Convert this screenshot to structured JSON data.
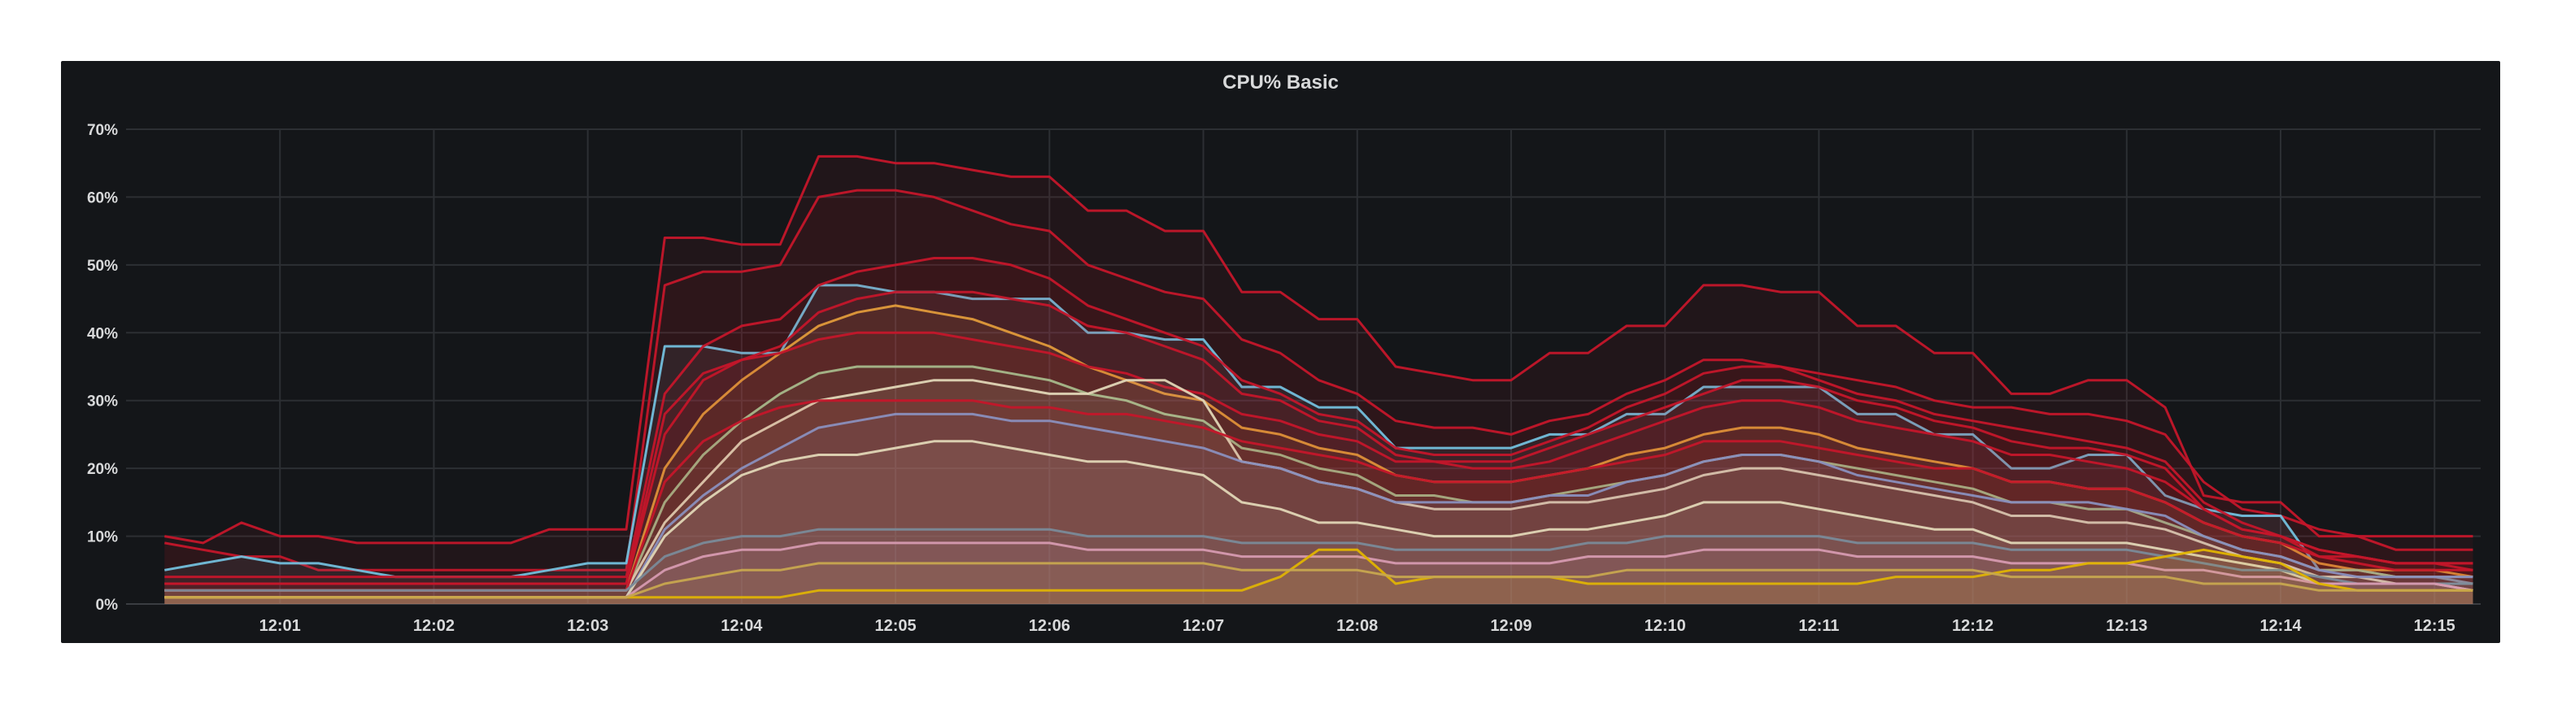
{
  "panel": {
    "title": "CPU% Basic"
  },
  "colors": {
    "background": "#141619",
    "grid": "#2c2f33",
    "text": "#d8d9da",
    "red_series": "#c4162a",
    "light_blue_series": "#73bfdc",
    "cream_series": "#e0d6b6",
    "yellow_series": "#e0b400",
    "orange_series": "#e09a3a",
    "sage_series": "#a7b88a"
  },
  "chart_data": {
    "type": "line",
    "title": "CPU% Basic",
    "xlabel": "",
    "ylabel": "",
    "x_tick_labels": [
      "12:01",
      "12:02",
      "12:03",
      "12:04",
      "12:05",
      "12:06",
      "12:07",
      "12:08",
      "12:09",
      "12:10",
      "12:11",
      "12:12",
      "12:13",
      "12:14",
      "12:15"
    ],
    "y_tick_labels": [
      "0%",
      "10%",
      "20%",
      "30%",
      "40%",
      "50%",
      "60%",
      "70%"
    ],
    "ylim": [
      0,
      70
    ],
    "grid": true,
    "legend": "none",
    "x": [
      0.25,
      0.5,
      0.75,
      1.0,
      1.25,
      1.5,
      1.75,
      2.0,
      2.25,
      2.5,
      2.75,
      3.0,
      3.25,
      3.5,
      3.75,
      4.0,
      4.25,
      4.5,
      4.75,
      5.0,
      5.25,
      5.5,
      5.75,
      6.0,
      6.25,
      6.5,
      6.75,
      7.0,
      7.25,
      7.5,
      7.75,
      8.0,
      8.25,
      8.5,
      8.75,
      9.0,
      9.25,
      9.5,
      9.75,
      10.0,
      10.25,
      10.5,
      10.75,
      11.0,
      11.25,
      11.5,
      11.75,
      12.0,
      12.25,
      12.5,
      12.75,
      13.0,
      13.25,
      13.5,
      13.75,
      14.0,
      14.25,
      14.5,
      14.75,
      15.0,
      15.25
    ],
    "series": [
      {
        "color": "#c4162a",
        "values": [
          10,
          9,
          12,
          10,
          10,
          9,
          9,
          9,
          9,
          9,
          11,
          11,
          11,
          54,
          54,
          53,
          53,
          66,
          66,
          65,
          65,
          64,
          63,
          63,
          58,
          58,
          55,
          55,
          46,
          46,
          42,
          42,
          35,
          34,
          33,
          33,
          37,
          37,
          41,
          41,
          47,
          47,
          46,
          46,
          41,
          41,
          37,
          37,
          31,
          31,
          33,
          33,
          29,
          16,
          15,
          15,
          10,
          10,
          10,
          10,
          10
        ]
      },
      {
        "color": "#c4162a",
        "values": [
          9,
          8,
          7,
          7,
          5,
          5,
          5,
          5,
          5,
          5,
          5,
          5,
          5,
          47,
          49,
          49,
          50,
          60,
          61,
          61,
          60,
          58,
          56,
          55,
          50,
          48,
          46,
          45,
          39,
          37,
          33,
          31,
          27,
          26,
          26,
          25,
          27,
          28,
          31,
          33,
          36,
          36,
          35,
          34,
          33,
          32,
          30,
          29,
          29,
          28,
          28,
          27,
          25,
          18,
          14,
          13,
          11,
          10,
          8,
          8,
          8
        ]
      },
      {
        "color": "#73bfdc",
        "values": [
          5,
          6,
          7,
          6,
          6,
          5,
          4,
          4,
          4,
          4,
          5,
          6,
          6,
          38,
          38,
          37,
          37,
          47,
          47,
          46,
          46,
          45,
          45,
          45,
          40,
          40,
          39,
          39,
          32,
          32,
          29,
          29,
          23,
          23,
          23,
          23,
          25,
          25,
          28,
          28,
          32,
          32,
          32,
          32,
          28,
          28,
          25,
          25,
          20,
          20,
          22,
          22,
          16,
          14,
          13,
          13,
          5,
          5,
          4,
          4,
          3
        ]
      },
      {
        "color": "#c4162a",
        "values": [
          4,
          4,
          4,
          4,
          4,
          4,
          4,
          4,
          4,
          4,
          4,
          4,
          4,
          31,
          38,
          41,
          42,
          47,
          49,
          50,
          51,
          51,
          50,
          48,
          44,
          42,
          40,
          38,
          33,
          31,
          28,
          27,
          23,
          22,
          22,
          22,
          24,
          26,
          29,
          31,
          34,
          35,
          35,
          33,
          31,
          30,
          28,
          27,
          26,
          25,
          24,
          23,
          21,
          15,
          12,
          10,
          8,
          7,
          6,
          6,
          6
        ]
      },
      {
        "color": "#c4162a",
        "values": [
          3,
          3,
          3,
          3,
          3,
          3,
          3,
          3,
          3,
          3,
          3,
          3,
          3,
          25,
          33,
          36,
          38,
          43,
          45,
          46,
          46,
          46,
          45,
          44,
          41,
          40,
          38,
          36,
          31,
          30,
          27,
          26,
          22,
          21,
          21,
          21,
          23,
          25,
          27,
          29,
          31,
          33,
          33,
          32,
          30,
          29,
          27,
          26,
          24,
          23,
          23,
          22,
          20,
          14,
          11,
          10,
          7,
          7,
          6,
          6,
          5
        ]
      },
      {
        "color": "#e09a3a",
        "values": [
          2,
          2,
          2,
          2,
          2,
          2,
          2,
          2,
          2,
          2,
          2,
          2,
          2,
          20,
          28,
          33,
          37,
          41,
          43,
          44,
          43,
          42,
          40,
          38,
          35,
          33,
          31,
          30,
          26,
          25,
          23,
          22,
          19,
          18,
          18,
          18,
          19,
          20,
          22,
          23,
          25,
          26,
          26,
          25,
          23,
          22,
          21,
          20,
          18,
          18,
          17,
          17,
          15,
          12,
          10,
          9,
          6,
          5,
          5,
          5,
          4
        ]
      },
      {
        "color": "#c4162a",
        "values": [
          3,
          3,
          3,
          3,
          3,
          3,
          3,
          3,
          3,
          3,
          3,
          3,
          3,
          28,
          34,
          36,
          37,
          39,
          40,
          40,
          40,
          39,
          38,
          37,
          35,
          34,
          32,
          31,
          28,
          27,
          25,
          24,
          21,
          21,
          20,
          20,
          21,
          23,
          25,
          27,
          29,
          30,
          30,
          29,
          27,
          26,
          25,
          24,
          22,
          22,
          21,
          20,
          18,
          14,
          11,
          10,
          8,
          7,
          6,
          6,
          6
        ]
      },
      {
        "color": "#a7b88a",
        "values": [
          2,
          2,
          2,
          2,
          2,
          2,
          2,
          2,
          2,
          2,
          2,
          2,
          2,
          15,
          22,
          27,
          31,
          34,
          35,
          35,
          35,
          35,
          34,
          33,
          31,
          30,
          28,
          27,
          23,
          22,
          20,
          19,
          16,
          16,
          15,
          15,
          16,
          17,
          18,
          19,
          21,
          22,
          22,
          21,
          20,
          19,
          18,
          17,
          15,
          15,
          14,
          14,
          12,
          10,
          8,
          7,
          5,
          5,
          4,
          4,
          4
        ]
      },
      {
        "color": "#e0d6b6",
        "values": [
          2,
          2,
          2,
          2,
          2,
          2,
          2,
          2,
          2,
          2,
          2,
          2,
          2,
          12,
          18,
          24,
          27,
          30,
          31,
          32,
          33,
          33,
          32,
          31,
          31,
          33,
          33,
          30,
          21,
          20,
          18,
          17,
          15,
          14,
          14,
          14,
          15,
          15,
          16,
          17,
          19,
          20,
          20,
          19,
          18,
          17,
          16,
          15,
          13,
          13,
          12,
          12,
          11,
          9,
          7,
          6,
          4,
          4,
          3,
          3,
          3
        ]
      },
      {
        "color": "#c4162a",
        "values": [
          2,
          2,
          2,
          2,
          2,
          2,
          2,
          2,
          2,
          2,
          2,
          2,
          2,
          18,
          24,
          27,
          29,
          30,
          30,
          30,
          30,
          30,
          29,
          29,
          28,
          28,
          27,
          26,
          24,
          23,
          22,
          21,
          19,
          18,
          18,
          18,
          19,
          20,
          21,
          22,
          24,
          24,
          24,
          23,
          22,
          21,
          20,
          20,
          18,
          18,
          17,
          17,
          15,
          12,
          10,
          9,
          7,
          6,
          5,
          5,
          5
        ]
      },
      {
        "color": "#8a8fbd",
        "values": [
          1,
          1,
          1,
          1,
          1,
          1,
          1,
          1,
          1,
          1,
          1,
          1,
          1,
          11,
          16,
          20,
          23,
          26,
          27,
          28,
          28,
          28,
          27,
          27,
          26,
          25,
          24,
          23,
          21,
          20,
          18,
          17,
          15,
          15,
          15,
          15,
          16,
          16,
          18,
          19,
          21,
          22,
          22,
          21,
          19,
          18,
          17,
          16,
          15,
          15,
          15,
          14,
          13,
          10,
          8,
          7,
          5,
          4,
          4,
          4,
          4
        ]
      },
      {
        "color": "#e0d6b6",
        "values": [
          1,
          1,
          1,
          1,
          1,
          1,
          1,
          1,
          1,
          1,
          1,
          1,
          1,
          10,
          15,
          19,
          21,
          22,
          22,
          23,
          24,
          24,
          23,
          22,
          21,
          21,
          20,
          19,
          15,
          14,
          12,
          12,
          11,
          10,
          10,
          10,
          11,
          11,
          12,
          13,
          15,
          15,
          15,
          14,
          13,
          12,
          11,
          11,
          9,
          9,
          9,
          9,
          8,
          7,
          6,
          5,
          3,
          3,
          3,
          3,
          2
        ]
      },
      {
        "color": "#7a8a99",
        "values": [
          2,
          2,
          2,
          2,
          2,
          2,
          2,
          2,
          2,
          2,
          2,
          2,
          2,
          7,
          9,
          10,
          10,
          11,
          11,
          11,
          11,
          11,
          11,
          11,
          10,
          10,
          10,
          10,
          9,
          9,
          9,
          9,
          8,
          8,
          8,
          8,
          8,
          9,
          9,
          10,
          10,
          10,
          10,
          10,
          9,
          9,
          9,
          9,
          8,
          8,
          8,
          8,
          7,
          6,
          5,
          5,
          4,
          3,
          3,
          3,
          3
        ]
      },
      {
        "color": "#d69ab0",
        "values": [
          1,
          1,
          1,
          1,
          1,
          1,
          1,
          1,
          1,
          1,
          1,
          1,
          1,
          5,
          7,
          8,
          8,
          9,
          9,
          9,
          9,
          9,
          9,
          9,
          8,
          8,
          8,
          8,
          7,
          7,
          7,
          7,
          6,
          6,
          6,
          6,
          6,
          7,
          7,
          7,
          8,
          8,
          8,
          8,
          7,
          7,
          7,
          7,
          6,
          6,
          6,
          6,
          5,
          5,
          4,
          4,
          3,
          3,
          3,
          3,
          2
        ]
      },
      {
        "color": "#e0b400",
        "values": [
          1,
          1,
          1,
          1,
          1,
          1,
          1,
          1,
          1,
          1,
          1,
          1,
          1,
          1,
          1,
          1,
          1,
          2,
          2,
          2,
          2,
          2,
          2,
          2,
          2,
          2,
          2,
          2,
          2,
          4,
          8,
          8,
          3,
          4,
          4,
          4,
          4,
          3,
          3,
          3,
          3,
          3,
          3,
          3,
          3,
          4,
          4,
          4,
          5,
          5,
          6,
          6,
          7,
          8,
          7,
          6,
          3,
          2,
          2,
          2,
          2
        ]
      },
      {
        "color": "#c7a64f",
        "values": [
          1,
          1,
          1,
          1,
          1,
          1,
          1,
          1,
          1,
          1,
          1,
          1,
          1,
          3,
          4,
          5,
          5,
          6,
          6,
          6,
          6,
          6,
          6,
          6,
          6,
          6,
          6,
          6,
          5,
          5,
          5,
          5,
          4,
          4,
          4,
          4,
          4,
          4,
          5,
          5,
          5,
          5,
          5,
          5,
          5,
          5,
          5,
          5,
          4,
          4,
          4,
          4,
          4,
          3,
          3,
          3,
          2,
          2,
          2,
          2,
          2
        ]
      }
    ]
  }
}
